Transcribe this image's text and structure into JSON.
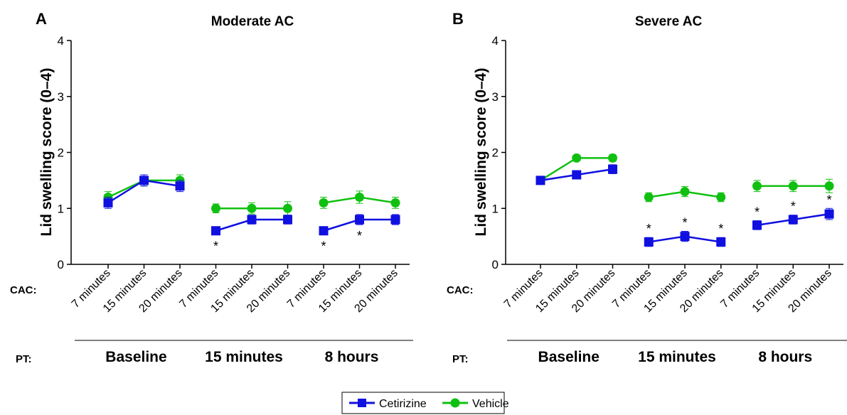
{
  "legend": [
    {
      "name": "Cetirizine",
      "color": "#1010e0",
      "marker": "square"
    },
    {
      "name": "Vehicle",
      "color": "#10c010",
      "marker": "circle"
    }
  ],
  "row_labels": {
    "cac": "CAC:",
    "pt": "PT:"
  },
  "chart_data": [
    {
      "type": "line",
      "panel": "A",
      "title": "Moderate AC",
      "ylabel": "Lid swelling score (0–4)",
      "ylim": [
        0,
        4
      ],
      "yticks": [
        0,
        1,
        2,
        3,
        4
      ],
      "categories": [
        "7 minutes",
        "15 minutes",
        "20 minutes",
        "7 minutes",
        "15 minutes",
        "20 minutes",
        "7 minutes",
        "15 minutes",
        "20 minutes"
      ],
      "groups": [
        {
          "label": "Baseline",
          "indices": [
            0,
            1,
            2
          ]
        },
        {
          "label": "15 minutes",
          "indices": [
            3,
            4,
            5
          ]
        },
        {
          "label": "8 hours",
          "indices": [
            6,
            7,
            8
          ]
        }
      ],
      "series": [
        {
          "name": "Cetirizine",
          "values": [
            1.1,
            1.5,
            1.4,
            0.6,
            0.8,
            0.8,
            0.6,
            0.8,
            0.8
          ],
          "errors": [
            0.1,
            0.1,
            0.1,
            0.07,
            0.08,
            0.08,
            0.07,
            0.09,
            0.09
          ]
        },
        {
          "name": "Vehicle",
          "values": [
            1.2,
            1.5,
            1.5,
            1.0,
            1.0,
            1.0,
            1.1,
            1.2,
            1.1
          ],
          "errors": [
            0.1,
            0.1,
            0.1,
            0.08,
            0.1,
            0.12,
            0.1,
            0.11,
            0.1
          ]
        }
      ],
      "significance": [
        {
          "index": 3,
          "symbol": "*",
          "position": "below"
        },
        {
          "index": 6,
          "symbol": "*",
          "position": "below"
        },
        {
          "index": 7,
          "symbol": "*",
          "position": "below"
        }
      ]
    },
    {
      "type": "line",
      "panel": "B",
      "title": "Severe AC",
      "ylabel": "Lid swelling score (0–4)",
      "ylim": [
        0,
        4
      ],
      "yticks": [
        0,
        1,
        2,
        3,
        4
      ],
      "categories": [
        "7 minutes",
        "15 minutes",
        "20 minutes",
        "7 minutes",
        "15 minutes",
        "20 minutes",
        "7 minutes",
        "15 minutes",
        "20 minutes"
      ],
      "groups": [
        {
          "label": "Baseline",
          "indices": [
            0,
            1,
            2
          ]
        },
        {
          "label": "15 minutes",
          "indices": [
            3,
            4,
            5
          ]
        },
        {
          "label": "8 hours",
          "indices": [
            6,
            7,
            8
          ]
        }
      ],
      "series": [
        {
          "name": "Cetirizine",
          "values": [
            1.5,
            1.6,
            1.7,
            0.4,
            0.5,
            0.4,
            0.7,
            0.8,
            0.9
          ],
          "errors": [
            0.05,
            0.07,
            0.08,
            0.08,
            0.09,
            0.08,
            0.08,
            0.08,
            0.1
          ]
        },
        {
          "name": "Vehicle",
          "values": [
            1.5,
            1.9,
            1.9,
            1.2,
            1.3,
            1.2,
            1.4,
            1.4,
            1.4
          ],
          "errors": [
            0.05,
            0.05,
            0.06,
            0.08,
            0.09,
            0.08,
            0.1,
            0.1,
            0.12
          ]
        }
      ],
      "significance": [
        {
          "index": 3,
          "symbol": "*",
          "position": "above"
        },
        {
          "index": 4,
          "symbol": "*",
          "position": "above"
        },
        {
          "index": 5,
          "symbol": "*",
          "position": "above"
        },
        {
          "index": 6,
          "symbol": "*",
          "position": "above"
        },
        {
          "index": 7,
          "symbol": "*",
          "position": "above"
        },
        {
          "index": 8,
          "symbol": "*",
          "position": "above"
        }
      ]
    }
  ]
}
